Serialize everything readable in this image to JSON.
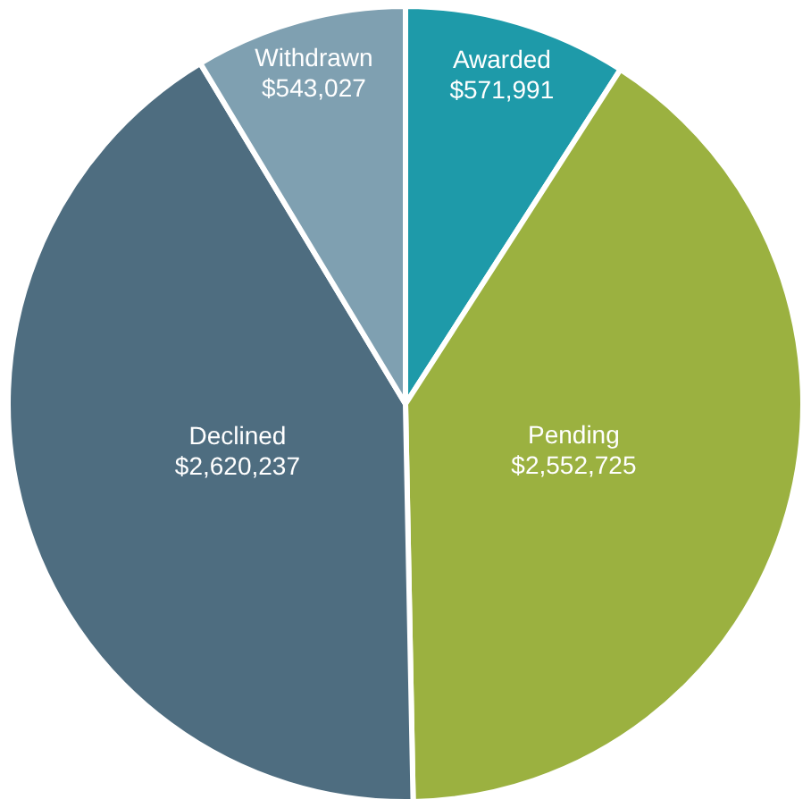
{
  "chart_data": {
    "type": "pie",
    "categories": [
      "Awarded",
      "Pending",
      "Declined",
      "Withdrawn"
    ],
    "values": [
      571991,
      2552725,
      2620237,
      543027
    ],
    "value_labels": [
      "$571,991",
      "$2,552,725",
      "$2,620,237",
      "$543,027"
    ],
    "colors": [
      "#1e9aa9",
      "#9bb140",
      "#4e6d80",
      "#7fa0b1"
    ],
    "legend": false
  }
}
